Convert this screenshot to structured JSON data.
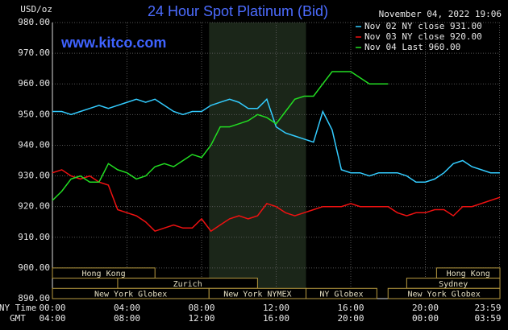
{
  "chart_data": {
    "type": "line",
    "title": "24 Hour Spot Platinum (Bid)",
    "timestamp": "November 04, 2022 19:06",
    "watermark": "www.kitco.com",
    "ylabel": "USD/oz",
    "xrow_labels": [
      "NY Time",
      "GMT"
    ],
    "xlim": [
      0,
      24
    ],
    "ylim": [
      890,
      980
    ],
    "xticks": [
      {
        "value": 0,
        "label": "00:00"
      },
      {
        "value": 4,
        "label": "04:00"
      },
      {
        "value": 8,
        "label": "08:00"
      },
      {
        "value": 12,
        "label": "12:00"
      },
      {
        "value": 16,
        "label": "16:00"
      },
      {
        "value": 20,
        "label": "20:00"
      },
      {
        "value": 23.98,
        "label": "23:59"
      }
    ],
    "xticks_gmt": [
      {
        "value": 0,
        "label": "04:00"
      },
      {
        "value": 4,
        "label": "08:00"
      },
      {
        "value": 8,
        "label": "12:00"
      },
      {
        "value": 12,
        "label": "16:00"
      },
      {
        "value": 16,
        "label": "20:00"
      },
      {
        "value": 20,
        "label": "00:00"
      },
      {
        "value": 23.98,
        "label": "03:59"
      }
    ],
    "yticks": [
      {
        "value": 890,
        "label": "890.00"
      },
      {
        "value": 900,
        "label": "900.00"
      },
      {
        "value": 910,
        "label": "910.00"
      },
      {
        "value": 920,
        "label": "920.00"
      },
      {
        "value": 930,
        "label": "930.00"
      },
      {
        "value": 940,
        "label": "940.00"
      },
      {
        "value": 950,
        "label": "950.00"
      },
      {
        "value": 960,
        "label": "960.00"
      },
      {
        "value": 970,
        "label": "970.00"
      },
      {
        "value": 980,
        "label": "980.00"
      }
    ],
    "grid": true,
    "shading": {
      "start": 8.4,
      "end": 13.6,
      "color": "#1b2619"
    },
    "sessions": [
      {
        "label": "Hong Kong",
        "start": 0,
        "end": 5.5,
        "row": 0
      },
      {
        "label": "Zurich",
        "start": 3.5,
        "end": 11,
        "row": 1
      },
      {
        "label": "New York Globex",
        "start": 0,
        "end": 8.4,
        "row": 2
      },
      {
        "label": "New York NYMEX",
        "start": 8.4,
        "end": 13.6,
        "row": 2
      },
      {
        "label": "NY Globex",
        "start": 13.6,
        "end": 17.4,
        "row": 2
      },
      {
        "label": "Hong Kong",
        "start": 20.6,
        "end": 24,
        "row": 0
      },
      {
        "label": "Sydney",
        "start": 19,
        "end": 24,
        "row": 1
      },
      {
        "label": "New York Globex",
        "start": 18,
        "end": 24,
        "row": 2
      }
    ],
    "x": [
      0,
      0.5,
      1,
      1.5,
      2,
      2.5,
      3,
      3.5,
      4,
      4.5,
      5,
      5.5,
      6,
      6.5,
      7,
      7.5,
      8,
      8.5,
      9,
      9.5,
      10,
      10.5,
      11,
      11.5,
      12,
      12.5,
      13,
      13.5,
      14,
      14.5,
      15,
      15.5,
      16,
      16.5,
      17,
      17.5,
      18,
      18.5,
      19,
      19.5,
      20,
      20.5,
      21,
      21.5,
      22,
      22.5,
      23,
      23.5,
      24
    ],
    "series": [
      {
        "name": "Nov 02 NY close 931.00",
        "color": "#33ccff",
        "values": [
          951,
          951,
          950,
          951,
          952,
          953,
          952,
          953,
          954,
          955,
          954,
          955,
          953,
          951,
          950,
          951,
          951,
          953,
          954,
          955,
          954,
          952,
          952,
          955,
          946,
          944,
          943,
          942,
          941,
          951,
          945,
          932,
          931,
          931,
          930,
          931,
          931,
          931,
          930,
          928,
          928,
          929,
          931,
          934,
          935,
          933,
          932,
          931,
          931
        ]
      },
      {
        "name": "Nov 03 NY close 920.00",
        "color": "#ee1111",
        "values": [
          931,
          932,
          930,
          929,
          930,
          928,
          927,
          919,
          918,
          917,
          915,
          912,
          913,
          914,
          913,
          913,
          916,
          912,
          914,
          916,
          917,
          916,
          917,
          921,
          920,
          918,
          917,
          918,
          919,
          920,
          920,
          920,
          921,
          920,
          920,
          920,
          920,
          918,
          917,
          918,
          918,
          919,
          919,
          917,
          920,
          920,
          921,
          922,
          923
        ]
      },
      {
        "name": "Nov 04 Last 960.00",
        "color": "#22dd22",
        "values": [
          922,
          925,
          929,
          930,
          928,
          928,
          934,
          932,
          931,
          929,
          930,
          933,
          934,
          933,
          935,
          937,
          936,
          940,
          946,
          946,
          947,
          948,
          950,
          949,
          947,
          951,
          955,
          956,
          956,
          960,
          964,
          964,
          964,
          962,
          960,
          960,
          960,
          null,
          null,
          null,
          null,
          null,
          null,
          null,
          null,
          null,
          null,
          null,
          null
        ]
      }
    ]
  }
}
